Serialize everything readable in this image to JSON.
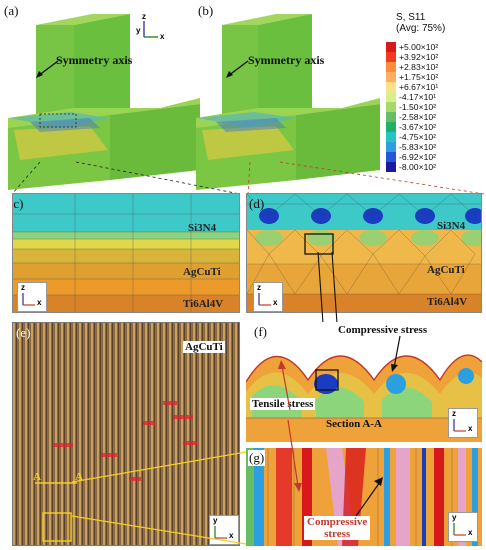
{
  "panels": {
    "a": "(a)",
    "b": "(b)",
    "c": "(c)",
    "d": "(d)",
    "e": "(e)",
    "f": "(f)",
    "g": "(g)"
  },
  "axes": {
    "z": "z",
    "x": "x",
    "y": "y"
  },
  "labels": {
    "symmetry_axis": "Symmetry axis",
    "si3n4": "Si3N4",
    "agcuti": "AgCuTi",
    "ti6al4v": "Ti6Al4V",
    "compressive_stress": "Compressive stress",
    "tensile_stress": "Tensile stress",
    "section": "Section A-A",
    "compressive_stress_g_line1": "Compressive",
    "compressive_stress_g_line2": "stress",
    "section_marker_a1": "A",
    "section_marker_a2": "A"
  },
  "legend": {
    "title_line1": "S, S11",
    "title_line2": "(Avg: 75%)",
    "entries": [
      {
        "label": "+5.00×10²",
        "color": "#d7191c"
      },
      {
        "label": "+3.92×10²",
        "color": "#f03b20"
      },
      {
        "label": "+2.83×10²",
        "color": "#fd8d3c"
      },
      {
        "label": "+1.75×10²",
        "color": "#fdae61"
      },
      {
        "label": "+6.67×10¹",
        "color": "#fee08b"
      },
      {
        "label": "-4.17×10¹",
        "color": "#d9ef8b"
      },
      {
        "label": "-1.50×10²",
        "color": "#a6d96a"
      },
      {
        "label": "-2.58×10²",
        "color": "#66bd63"
      },
      {
        "label": "-3.67×10²",
        "color": "#1fb06a"
      },
      {
        "label": "-4.75×10²",
        "color": "#25c5c5"
      },
      {
        "label": "-5.83×10²",
        "color": "#2b9fe0"
      },
      {
        "label": "-6.92×10²",
        "color": "#2358d6"
      },
      {
        "label": "-8.00×10²",
        "color": "#1a1aa0"
      }
    ]
  }
}
